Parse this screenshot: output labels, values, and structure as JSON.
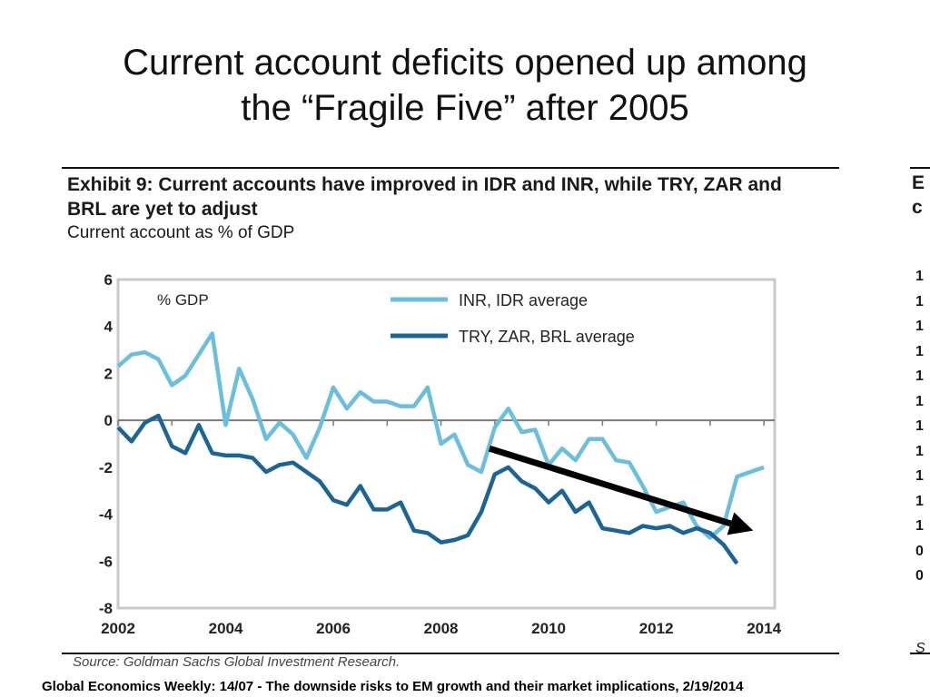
{
  "slide": {
    "title_line1": "Current account deficits opened up among",
    "title_line2": "the “Fragile Five” after 2005",
    "footer": "Global Economics Weekly: 14/07 - The downside risks to EM growth and their market implications, 2/19/2014"
  },
  "exhibit": {
    "heading": "Exhibit 9: Current accounts have improved in IDR and INR, while TRY, ZAR and BRL are yet to adjust",
    "subheading": "Current account as % of GDP",
    "source": "Source: Goldman Sachs Global Investment Research."
  },
  "chart_data": {
    "type": "line",
    "unit_label": "% GDP",
    "xlim": [
      2002,
      2014.2
    ],
    "ylim": [
      -8,
      6
    ],
    "x_ticks": [
      2002,
      2004,
      2006,
      2008,
      2010,
      2012,
      2014
    ],
    "y_ticks": [
      6,
      4,
      2,
      0,
      -2,
      -4,
      -6,
      -8
    ],
    "legend_position": "top-right",
    "grid": false,
    "series": [
      {
        "name": "INR, IDR average",
        "color": "#6bbfdc",
        "points": [
          [
            2002.0,
            2.3
          ],
          [
            2002.25,
            2.8
          ],
          [
            2002.5,
            2.9
          ],
          [
            2002.75,
            2.6
          ],
          [
            2003.0,
            1.5
          ],
          [
            2003.25,
            1.9
          ],
          [
            2003.5,
            2.8
          ],
          [
            2003.75,
            3.7
          ],
          [
            2004.0,
            -0.2
          ],
          [
            2004.25,
            2.2
          ],
          [
            2004.5,
            0.9
          ],
          [
            2004.75,
            -0.8
          ],
          [
            2005.0,
            -0.1
          ],
          [
            2005.25,
            -0.6
          ],
          [
            2005.5,
            -1.6
          ],
          [
            2005.75,
            -0.3
          ],
          [
            2006.0,
            1.4
          ],
          [
            2006.25,
            0.5
          ],
          [
            2006.5,
            1.2
          ],
          [
            2006.75,
            0.8
          ],
          [
            2007.0,
            0.8
          ],
          [
            2007.25,
            0.6
          ],
          [
            2007.5,
            0.6
          ],
          [
            2007.75,
            1.4
          ],
          [
            2008.0,
            -1.0
          ],
          [
            2008.25,
            -0.6
          ],
          [
            2008.5,
            -1.9
          ],
          [
            2008.75,
            -2.2
          ],
          [
            2009.0,
            -0.3
          ],
          [
            2009.25,
            0.5
          ],
          [
            2009.5,
            -0.5
          ],
          [
            2009.75,
            -0.4
          ],
          [
            2010.0,
            -1.9
          ],
          [
            2010.25,
            -1.2
          ],
          [
            2010.5,
            -1.7
          ],
          [
            2010.75,
            -0.8
          ],
          [
            2011.0,
            -0.8
          ],
          [
            2011.25,
            -1.7
          ],
          [
            2011.5,
            -1.8
          ],
          [
            2011.75,
            -2.8
          ],
          [
            2012.0,
            -3.9
          ],
          [
            2012.25,
            -3.7
          ],
          [
            2012.5,
            -3.5
          ],
          [
            2012.75,
            -4.5
          ],
          [
            2013.0,
            -5.0
          ],
          [
            2013.25,
            -4.5
          ],
          [
            2013.5,
            -2.4
          ],
          [
            2013.75,
            -2.2
          ],
          [
            2014.0,
            -2.0
          ]
        ]
      },
      {
        "name": "TRY, ZAR, BRL average",
        "color": "#1b6494",
        "points": [
          [
            2002.0,
            -0.3
          ],
          [
            2002.25,
            -0.9
          ],
          [
            2002.5,
            -0.1
          ],
          [
            2002.75,
            0.2
          ],
          [
            2003.0,
            -1.1
          ],
          [
            2003.25,
            -1.4
          ],
          [
            2003.5,
            -0.2
          ],
          [
            2003.75,
            -1.4
          ],
          [
            2004.0,
            -1.5
          ],
          [
            2004.25,
            -1.5
          ],
          [
            2004.5,
            -1.6
          ],
          [
            2004.75,
            -2.2
          ],
          [
            2005.0,
            -1.9
          ],
          [
            2005.25,
            -1.8
          ],
          [
            2005.5,
            -2.2
          ],
          [
            2005.75,
            -2.6
          ],
          [
            2006.0,
            -3.4
          ],
          [
            2006.25,
            -3.6
          ],
          [
            2006.5,
            -2.8
          ],
          [
            2006.75,
            -3.8
          ],
          [
            2007.0,
            -3.8
          ],
          [
            2007.25,
            -3.5
          ],
          [
            2007.5,
            -4.7
          ],
          [
            2007.75,
            -4.8
          ],
          [
            2008.0,
            -5.2
          ],
          [
            2008.25,
            -5.1
          ],
          [
            2008.5,
            -4.9
          ],
          [
            2008.75,
            -3.9
          ],
          [
            2009.0,
            -2.3
          ],
          [
            2009.25,
            -2.0
          ],
          [
            2009.5,
            -2.6
          ],
          [
            2009.75,
            -2.9
          ],
          [
            2010.0,
            -3.5
          ],
          [
            2010.25,
            -3.0
          ],
          [
            2010.5,
            -3.9
          ],
          [
            2010.75,
            -3.5
          ],
          [
            2011.0,
            -4.6
          ],
          [
            2011.25,
            -4.7
          ],
          [
            2011.5,
            -4.8
          ],
          [
            2011.75,
            -4.5
          ],
          [
            2012.0,
            -4.6
          ],
          [
            2012.25,
            -4.5
          ],
          [
            2012.5,
            -4.8
          ],
          [
            2012.75,
            -4.6
          ],
          [
            2013.0,
            -4.8
          ],
          [
            2013.25,
            -5.3
          ],
          [
            2013.5,
            -6.1
          ]
        ]
      }
    ],
    "annotation_arrow": {
      "from": [
        2008.9,
        -1.2
      ],
      "to": [
        2013.8,
        -4.7
      ],
      "color": "#000000"
    }
  },
  "exhibit2_partial": {
    "heading_chars": [
      "E",
      "c"
    ],
    "tick_chars": [
      "1",
      "1",
      "1",
      "1",
      "1",
      "1",
      "1",
      "1",
      "1",
      "1",
      "1",
      "0",
      "0"
    ],
    "source_chars": "S"
  }
}
